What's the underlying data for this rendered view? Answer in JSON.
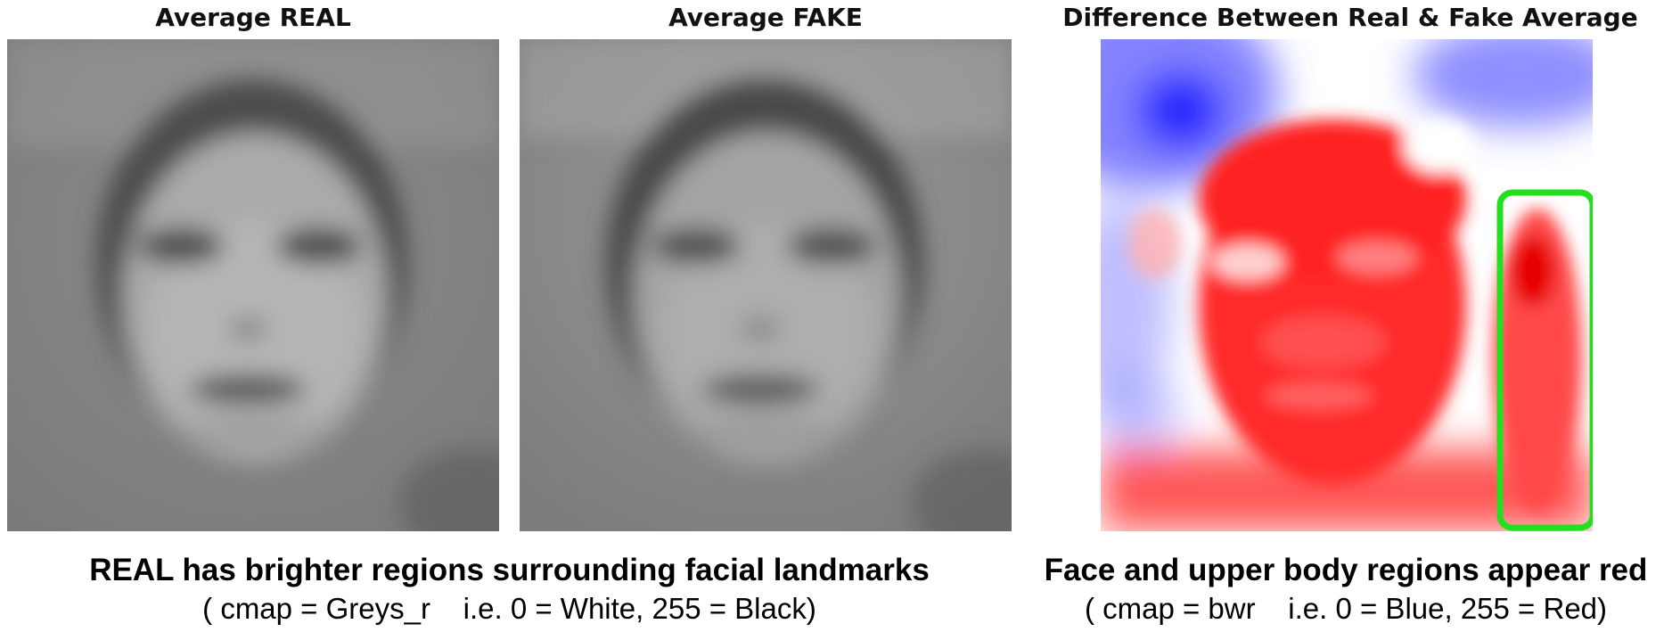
{
  "panels": {
    "real": {
      "title": "Average REAL"
    },
    "fake": {
      "title": "Average FAKE"
    },
    "diff": {
      "title": "Difference Between Real & Fake Average"
    }
  },
  "captions": {
    "left": {
      "main": "REAL has brighter regions surrounding facial landmarks",
      "sub": "( cmap = Greys_r    i.e. 0 = White, 255 = Black)"
    },
    "right": {
      "main": "Face and upper body regions appear red",
      "sub": "( cmap = bwr    i.e. 0 = Blue, 255 = Red)"
    }
  },
  "colors": {
    "highlight_box": "#22e01f",
    "bwr_red": "#ff1a1a",
    "bwr_blue": "#2a2aff"
  }
}
